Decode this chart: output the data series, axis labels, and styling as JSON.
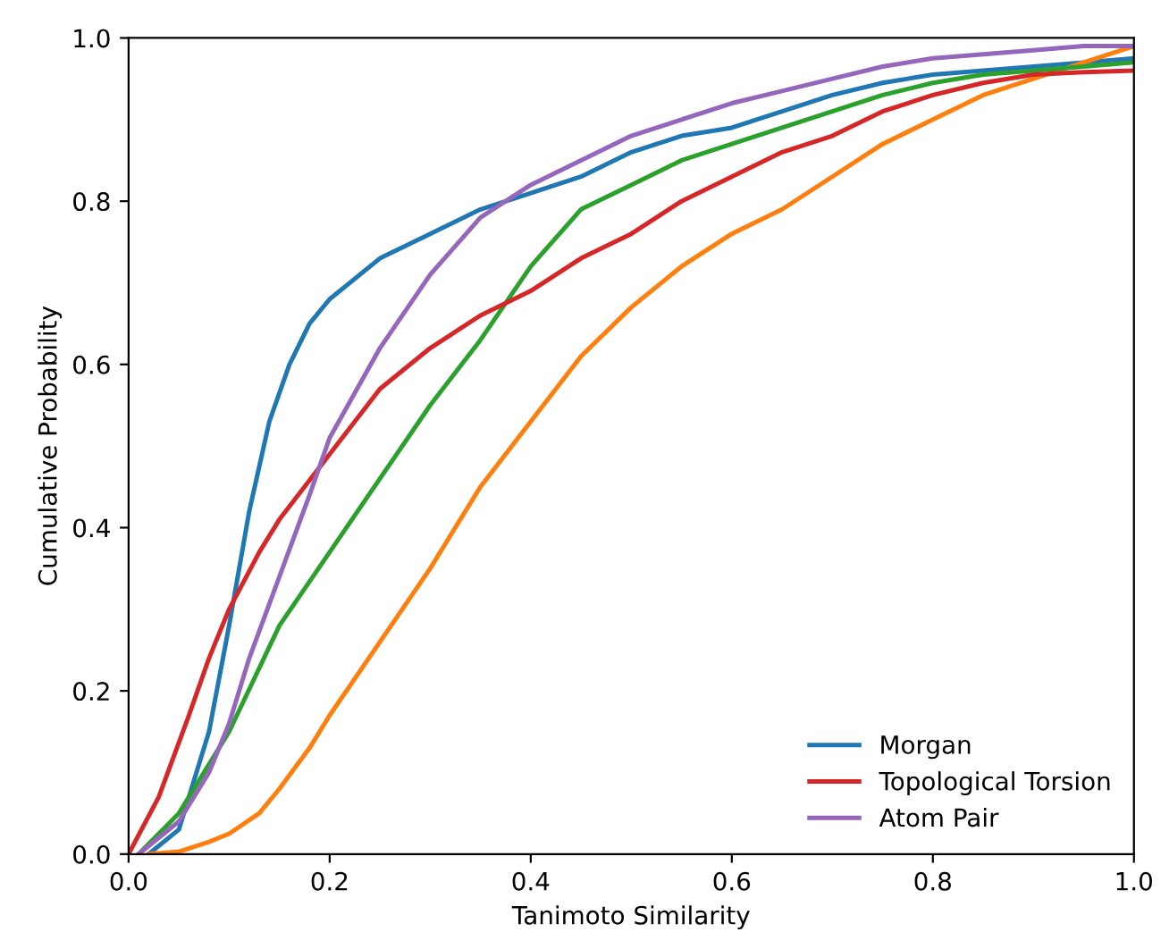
{
  "chart_data": {
    "type": "line",
    "xlabel": "Tanimoto Similarity",
    "ylabel": "Cumulative Probability",
    "xlim": [
      0,
      1
    ],
    "ylim": [
      0,
      1
    ],
    "xticks": [
      {
        "value": 0,
        "label": "0.0"
      },
      {
        "value": 0.2,
        "label": "0.2"
      },
      {
        "value": 0.4,
        "label": "0.4"
      },
      {
        "value": 0.6,
        "label": "0.6"
      },
      {
        "value": 0.8,
        "label": "0.8"
      },
      {
        "value": 1,
        "label": "1.0"
      }
    ],
    "yticks": [
      {
        "value": 0,
        "label": "0.0"
      },
      {
        "value": 0.2,
        "label": "0.2"
      },
      {
        "value": 0.4,
        "label": "0.4"
      },
      {
        "value": 0.6,
        "label": "0.6"
      },
      {
        "value": 0.8,
        "label": "0.8"
      },
      {
        "value": 1,
        "label": "1.0"
      }
    ],
    "legend": "bottom right",
    "grid": false,
    "series": [
      {
        "name": "Morgan",
        "color": "#1f77b4",
        "x": [
          0.02,
          0.05,
          0.08,
          0.1,
          0.12,
          0.14,
          0.16,
          0.18,
          0.2,
          0.25,
          0.3,
          0.35,
          0.4,
          0.45,
          0.5,
          0.55,
          0.6,
          0.65,
          0.7,
          0.75,
          0.8,
          0.85,
          0.9,
          0.95,
          1.0
        ],
        "values": [
          0,
          0.03,
          0.15,
          0.28,
          0.42,
          0.53,
          0.6,
          0.65,
          0.68,
          0.73,
          0.76,
          0.79,
          0.81,
          0.83,
          0.86,
          0.88,
          0.89,
          0.91,
          0.93,
          0.945,
          0.955,
          0.96,
          0.965,
          0.97,
          0.975
        ]
      },
      {
        "color": "#ff7f0e",
        "x": [
          0.02,
          0.05,
          0.08,
          0.1,
          0.13,
          0.15,
          0.18,
          0.2,
          0.25,
          0.3,
          0.35,
          0.4,
          0.45,
          0.5,
          0.55,
          0.6,
          0.65,
          0.7,
          0.75,
          0.8,
          0.85,
          0.9,
          0.95,
          1.0
        ],
        "values": [
          0,
          0.003,
          0.015,
          0.025,
          0.05,
          0.08,
          0.13,
          0.17,
          0.26,
          0.35,
          0.45,
          0.53,
          0.61,
          0.67,
          0.72,
          0.76,
          0.79,
          0.83,
          0.87,
          0.9,
          0.93,
          0.95,
          0.97,
          0.99
        ]
      },
      {
        "color": "#2ca02c",
        "x": [
          0.01,
          0.05,
          0.08,
          0.1,
          0.15,
          0.2,
          0.25,
          0.3,
          0.35,
          0.4,
          0.45,
          0.5,
          0.55,
          0.6,
          0.65,
          0.7,
          0.75,
          0.8,
          0.85,
          0.9,
          0.95,
          1.0
        ],
        "values": [
          0,
          0.05,
          0.11,
          0.15,
          0.28,
          0.37,
          0.46,
          0.55,
          0.63,
          0.72,
          0.79,
          0.82,
          0.85,
          0.87,
          0.89,
          0.91,
          0.93,
          0.945,
          0.955,
          0.96,
          0.965,
          0.97
        ]
      },
      {
        "name": "Topological Torsion",
        "color": "#d62728",
        "x": [
          0.0,
          0.03,
          0.06,
          0.08,
          0.1,
          0.13,
          0.15,
          0.2,
          0.25,
          0.3,
          0.35,
          0.4,
          0.45,
          0.5,
          0.55,
          0.6,
          0.65,
          0.7,
          0.75,
          0.8,
          0.85,
          0.9,
          0.95,
          1.0
        ],
        "values": [
          0,
          0.07,
          0.17,
          0.24,
          0.3,
          0.37,
          0.41,
          0.49,
          0.57,
          0.62,
          0.66,
          0.69,
          0.73,
          0.76,
          0.8,
          0.83,
          0.86,
          0.88,
          0.91,
          0.93,
          0.945,
          0.955,
          0.958,
          0.96
        ]
      },
      {
        "name": "Atom Pair",
        "color": "#9467bd",
        "x": [
          0.01,
          0.05,
          0.08,
          0.1,
          0.12,
          0.15,
          0.18,
          0.2,
          0.25,
          0.3,
          0.35,
          0.4,
          0.45,
          0.5,
          0.55,
          0.6,
          0.65,
          0.7,
          0.75,
          0.8,
          0.85,
          0.9,
          0.95,
          1.0
        ],
        "values": [
          0,
          0.04,
          0.1,
          0.16,
          0.24,
          0.34,
          0.44,
          0.51,
          0.62,
          0.71,
          0.78,
          0.82,
          0.85,
          0.88,
          0.9,
          0.92,
          0.935,
          0.95,
          0.965,
          0.975,
          0.98,
          0.985,
          0.99,
          0.99
        ]
      }
    ]
  }
}
